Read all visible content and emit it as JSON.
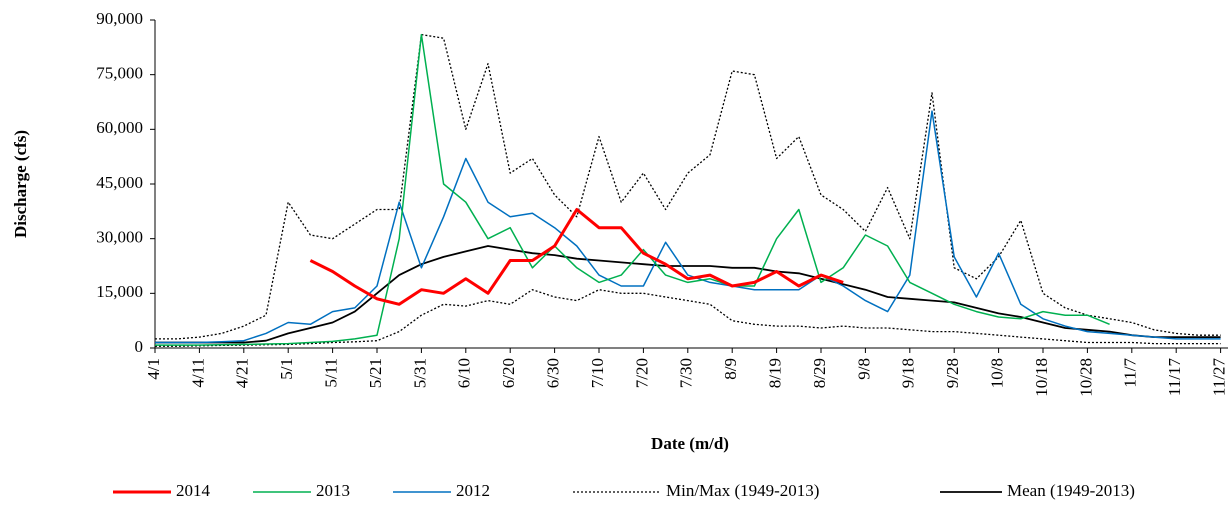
{
  "chart_data": {
    "type": "line",
    "y_label": "Discharge (cfs)",
    "x_label": "Date (m/d)",
    "categories": [
      "4/1",
      null,
      "4/11",
      null,
      "4/21",
      null,
      "5/1",
      null,
      "5/11",
      null,
      "5/21",
      null,
      "5/31",
      null,
      "6/10",
      null,
      "6/20",
      null,
      "6/30",
      null,
      "7/10",
      null,
      "7/20",
      null,
      "7/30",
      null,
      "8/9",
      null,
      "8/19",
      null,
      "8/29",
      null,
      "9/8",
      null,
      "9/18",
      null,
      "9/28",
      null,
      "10/8",
      null,
      "10/18",
      null,
      "10/28",
      null,
      "11/7",
      null,
      "11/17",
      null,
      "11/27"
    ],
    "ylim": [
      0,
      90000
    ],
    "yticks": [
      0,
      {
        "value": 15000,
        "label": "15,000"
      },
      {
        "value": 30000,
        "label": "30,000"
      },
      {
        "value": 45000,
        "label": "45,000"
      },
      {
        "value": 60000,
        "label": "60,000"
      },
      {
        "value": 75000,
        "label": "75,000"
      },
      {
        "value": 90000,
        "label": "90,000"
      }
    ],
    "series": [
      {
        "name": "2014",
        "color": "#ff0000",
        "width": 3,
        "values": [
          null,
          null,
          null,
          null,
          null,
          null,
          null,
          24000,
          21000,
          17000,
          13500,
          12000,
          16000,
          15000,
          19000,
          15000,
          24000,
          24000,
          28000,
          38000,
          33000,
          33000,
          26000,
          23000,
          19000,
          20000,
          17000,
          18000,
          21000,
          17000,
          20000,
          18000,
          null,
          null,
          null,
          null,
          null,
          null,
          null,
          null,
          null,
          null,
          null,
          null,
          null,
          null,
          null,
          null,
          null
        ]
      },
      {
        "name": "2013",
        "color": "#00b050",
        "width": 1.5,
        "values": [
          800,
          800,
          800,
          900,
          1000,
          1100,
          1200,
          1500,
          1800,
          2500,
          3500,
          30000,
          86000,
          45000,
          40000,
          30000,
          33000,
          22000,
          28000,
          22000,
          18000,
          20000,
          27000,
          20000,
          18000,
          19000,
          17000,
          17000,
          30000,
          38000,
          18000,
          22000,
          31000,
          28000,
          18000,
          15000,
          12000,
          10000,
          8500,
          8000,
          10000,
          9000,
          9000,
          6500,
          null,
          null,
          null,
          null,
          null
        ]
      },
      {
        "name": "2012",
        "color": "#0070c0",
        "width": 1.5,
        "values": [
          1500,
          1500,
          1500,
          1700,
          2000,
          4000,
          7000,
          6500,
          10000,
          11000,
          17000,
          40000,
          22000,
          36000,
          52000,
          40000,
          36000,
          37000,
          33000,
          28000,
          20000,
          17000,
          17000,
          29000,
          20000,
          18000,
          17000,
          16000,
          16000,
          16000,
          20000,
          17000,
          13000,
          10000,
          20000,
          65000,
          25000,
          14000,
          26000,
          12000,
          8000,
          6000,
          4500,
          4000,
          3500,
          3000,
          2500,
          2500,
          2500
        ]
      },
      {
        "name": "Min/Max (1949-2013)",
        "color": "#000000",
        "width": 1.3,
        "dash": true,
        "values": [
          2500,
          2500,
          3000,
          4000,
          6000,
          9000,
          40000,
          31000,
          30000,
          34000,
          38000,
          38000,
          86000,
          85000,
          60000,
          78000,
          48000,
          52000,
          42000,
          36000,
          58000,
          40000,
          48000,
          38000,
          48000,
          53000,
          76000,
          75000,
          52000,
          58000,
          42000,
          38000,
          32000,
          44000,
          30000,
          70000,
          22000,
          19000,
          25000,
          35000,
          15000,
          11000,
          9000,
          8000,
          7000,
          5000,
          4000,
          3500,
          3500
        ],
        "low": [
          500,
          500,
          600,
          700,
          800,
          900,
          1000,
          1200,
          1500,
          1700,
          2000,
          4500,
          9000,
          12000,
          11500,
          13000,
          12000,
          16000,
          14000,
          13000,
          16000,
          15000,
          15000,
          14000,
          13000,
          12000,
          7500,
          6500,
          6000,
          6000,
          5500,
          6000,
          5500,
          5500,
          5000,
          4500,
          4500,
          4000,
          3500,
          3000,
          2500,
          2000,
          1500,
          1500,
          1500,
          1200,
          1200,
          1200,
          1200
        ]
      },
      {
        "name": "Mean (1949-2013)",
        "color": "#000000",
        "width": 1.8,
        "values": [
          1500,
          1500,
          1500,
          1500,
          1500,
          2000,
          4000,
          5500,
          7000,
          10000,
          15000,
          20000,
          23000,
          25000,
          26500,
          28000,
          27000,
          26000,
          25500,
          24500,
          24000,
          23500,
          23000,
          22500,
          22500,
          22500,
          22000,
          22000,
          21000,
          20500,
          19000,
          17500,
          16000,
          14000,
          13500,
          13000,
          12500,
          11000,
          9500,
          8500,
          7000,
          5500,
          5000,
          4500,
          3500,
          3000,
          3000,
          3000,
          3000
        ]
      }
    ]
  }
}
